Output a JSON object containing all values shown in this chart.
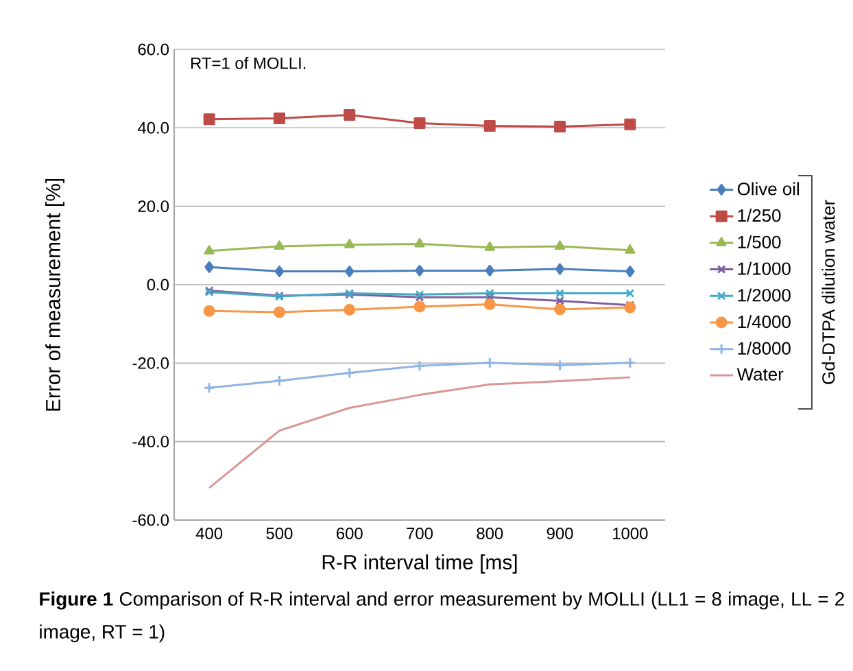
{
  "chart_data": {
    "type": "line",
    "ylabel": "Error of measurement  [%]",
    "xlabel": "R-R interval time  [ms]",
    "categories": [
      "400",
      "500",
      "600",
      "700",
      "800",
      "900",
      "1000"
    ],
    "ylim": [
      -60,
      60
    ],
    "yticks": [
      {
        "value": -60,
        "label": "-60.0"
      },
      {
        "value": -40,
        "label": "-40.0"
      },
      {
        "value": -20,
        "label": "-20.0"
      },
      {
        "value": 0,
        "label": "0.0"
      },
      {
        "value": 20,
        "label": "20.0"
      },
      {
        "value": 40,
        "label": "40.0"
      },
      {
        "value": 60,
        "label": "60.0"
      }
    ],
    "grid": "y",
    "legend": "right",
    "series": [
      {
        "name": "Olive oil",
        "color": "#4a7ebb",
        "marker": "diamond",
        "values": [
          4.5,
          3.4,
          3.4,
          3.6,
          3.6,
          4.0,
          3.4
        ]
      },
      {
        "name": "1/250",
        "color": "#be4b48",
        "marker": "square",
        "values": [
          42.2,
          42.4,
          43.3,
          41.2,
          40.5,
          40.3,
          40.9
        ]
      },
      {
        "name": "1/500",
        "color": "#98b954",
        "marker": "triangle",
        "values": [
          8.6,
          9.8,
          10.2,
          10.4,
          9.5,
          9.8,
          8.8
        ]
      },
      {
        "name": "1/1000",
        "color": "#7d60a0",
        "marker": "cross",
        "values": [
          -1.5,
          -2.8,
          -2.5,
          -3.2,
          -3.2,
          -4.1,
          -5.2
        ]
      },
      {
        "name": "1/2000",
        "color": "#46aac5",
        "marker": "cross",
        "values": [
          -1.9,
          -3.0,
          -2.2,
          -2.5,
          -2.2,
          -2.2,
          -2.2
        ]
      },
      {
        "name": "1/4000",
        "color": "#f79646",
        "marker": "circle",
        "values": [
          -6.7,
          -7.0,
          -6.4,
          -5.6,
          -5.0,
          -6.3,
          -5.8
        ]
      },
      {
        "name": "1/8000",
        "color": "#8eb4e3",
        "marker": "plus",
        "values": [
          -26.3,
          -24.5,
          -22.5,
          -20.7,
          -19.9,
          -20.5,
          -19.9
        ]
      },
      {
        "name": "Water",
        "color": "#d99694",
        "marker": "none",
        "values": [
          -51.8,
          -37.2,
          -31.4,
          -28.1,
          -25.4,
          -24.6,
          -23.6
        ]
      }
    ],
    "annotations": [
      "RT=1 of MOLLI.",
      "Gd-DTPA dilution water",
      "**Figure 1** Comparison of R-R interval and error measurement by MOLLI (LL1 = 8 image, LL = 2 image, RT = 1)"
    ]
  }
}
